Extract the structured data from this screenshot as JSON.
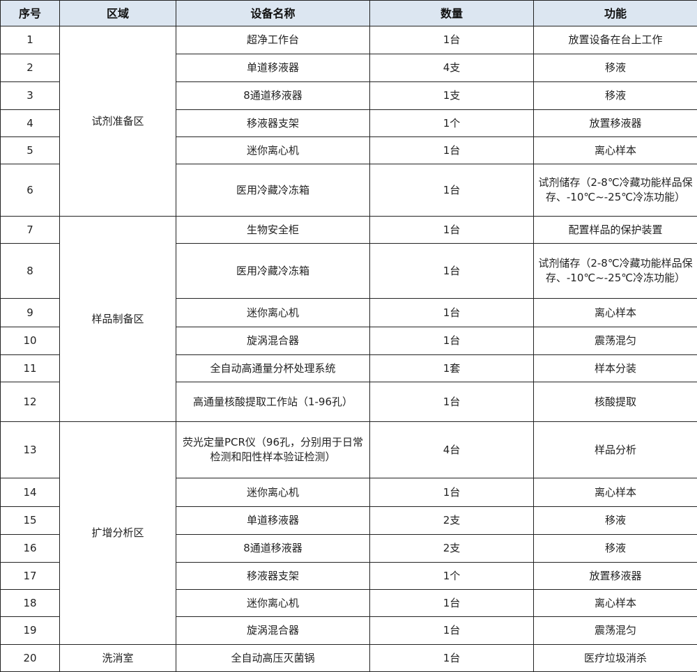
{
  "header": {
    "no": "序号",
    "region": "区域",
    "name": "设备名称",
    "qty": "数量",
    "func": "功能"
  },
  "regions": [
    {
      "label": "试剂准备区",
      "span": 6
    },
    {
      "label": "样品制备区",
      "span": 6
    },
    {
      "label": "扩增分析区",
      "span": 7
    },
    {
      "label": "洗消室",
      "span": 1
    }
  ],
  "rows": [
    {
      "no": "1",
      "name": "超净工作台",
      "qty": "1台",
      "func": "放置设备在台上工作"
    },
    {
      "no": "2",
      "name": "单道移液器",
      "qty": "4支",
      "func": "移液"
    },
    {
      "no": "3",
      "name": "8通道移液器",
      "qty": "1支",
      "func": "移液"
    },
    {
      "no": "4",
      "name": "移液器支架",
      "qty": "1个",
      "func": "放置移液器"
    },
    {
      "no": "5",
      "name": "迷你离心机",
      "qty": "1台",
      "func": "离心样本"
    },
    {
      "no": "6",
      "name": "医用冷藏冷冻箱",
      "qty": "1台",
      "func": "试剂储存（2-8℃冷藏功能样品保存、-10℃~-25℃冷冻功能）"
    },
    {
      "no": "7",
      "name": "生物安全柜",
      "qty": "1台",
      "func": "配置样品的保护装置"
    },
    {
      "no": "8",
      "name": "医用冷藏冷冻箱",
      "qty": "1台",
      "func": "试剂储存（2-8℃冷藏功能样品保存、-10℃~-25℃冷冻功能）"
    },
    {
      "no": "9",
      "name": "迷你离心机",
      "qty": "1台",
      "func": "离心样本"
    },
    {
      "no": "10",
      "name": "旋涡混合器",
      "qty": "1台",
      "func": "震荡混匀"
    },
    {
      "no": "11",
      "name": "全自动高通量分杯处理系统",
      "qty": "1套",
      "func": "样本分装"
    },
    {
      "no": "12",
      "name": "高通量核酸提取工作站（1-96孔）",
      "qty": "1台",
      "func": "核酸提取"
    },
    {
      "no": "13",
      "name": "荧光定量PCR仪（96孔，分别用于日常检测和阳性样本验证检测）",
      "qty": "4台",
      "func": "样品分析"
    },
    {
      "no": "14",
      "name": "迷你离心机",
      "qty": "1台",
      "func": "离心样本"
    },
    {
      "no": "15",
      "name": "单道移液器",
      "qty": "2支",
      "func": "移液"
    },
    {
      "no": "16",
      "name": "8通道移液器",
      "qty": "2支",
      "func": "移液"
    },
    {
      "no": "17",
      "name": "移液器支架",
      "qty": "1个",
      "func": "放置移液器"
    },
    {
      "no": "18",
      "name": "迷你离心机",
      "qty": "1台",
      "func": "离心样本"
    },
    {
      "no": "19",
      "name": "旋涡混合器",
      "qty": "1台",
      "func": "震荡混匀"
    },
    {
      "no": "20",
      "name": "全自动高压灭菌锅",
      "qty": "1台",
      "func": "医疗垃圾消杀"
    }
  ]
}
